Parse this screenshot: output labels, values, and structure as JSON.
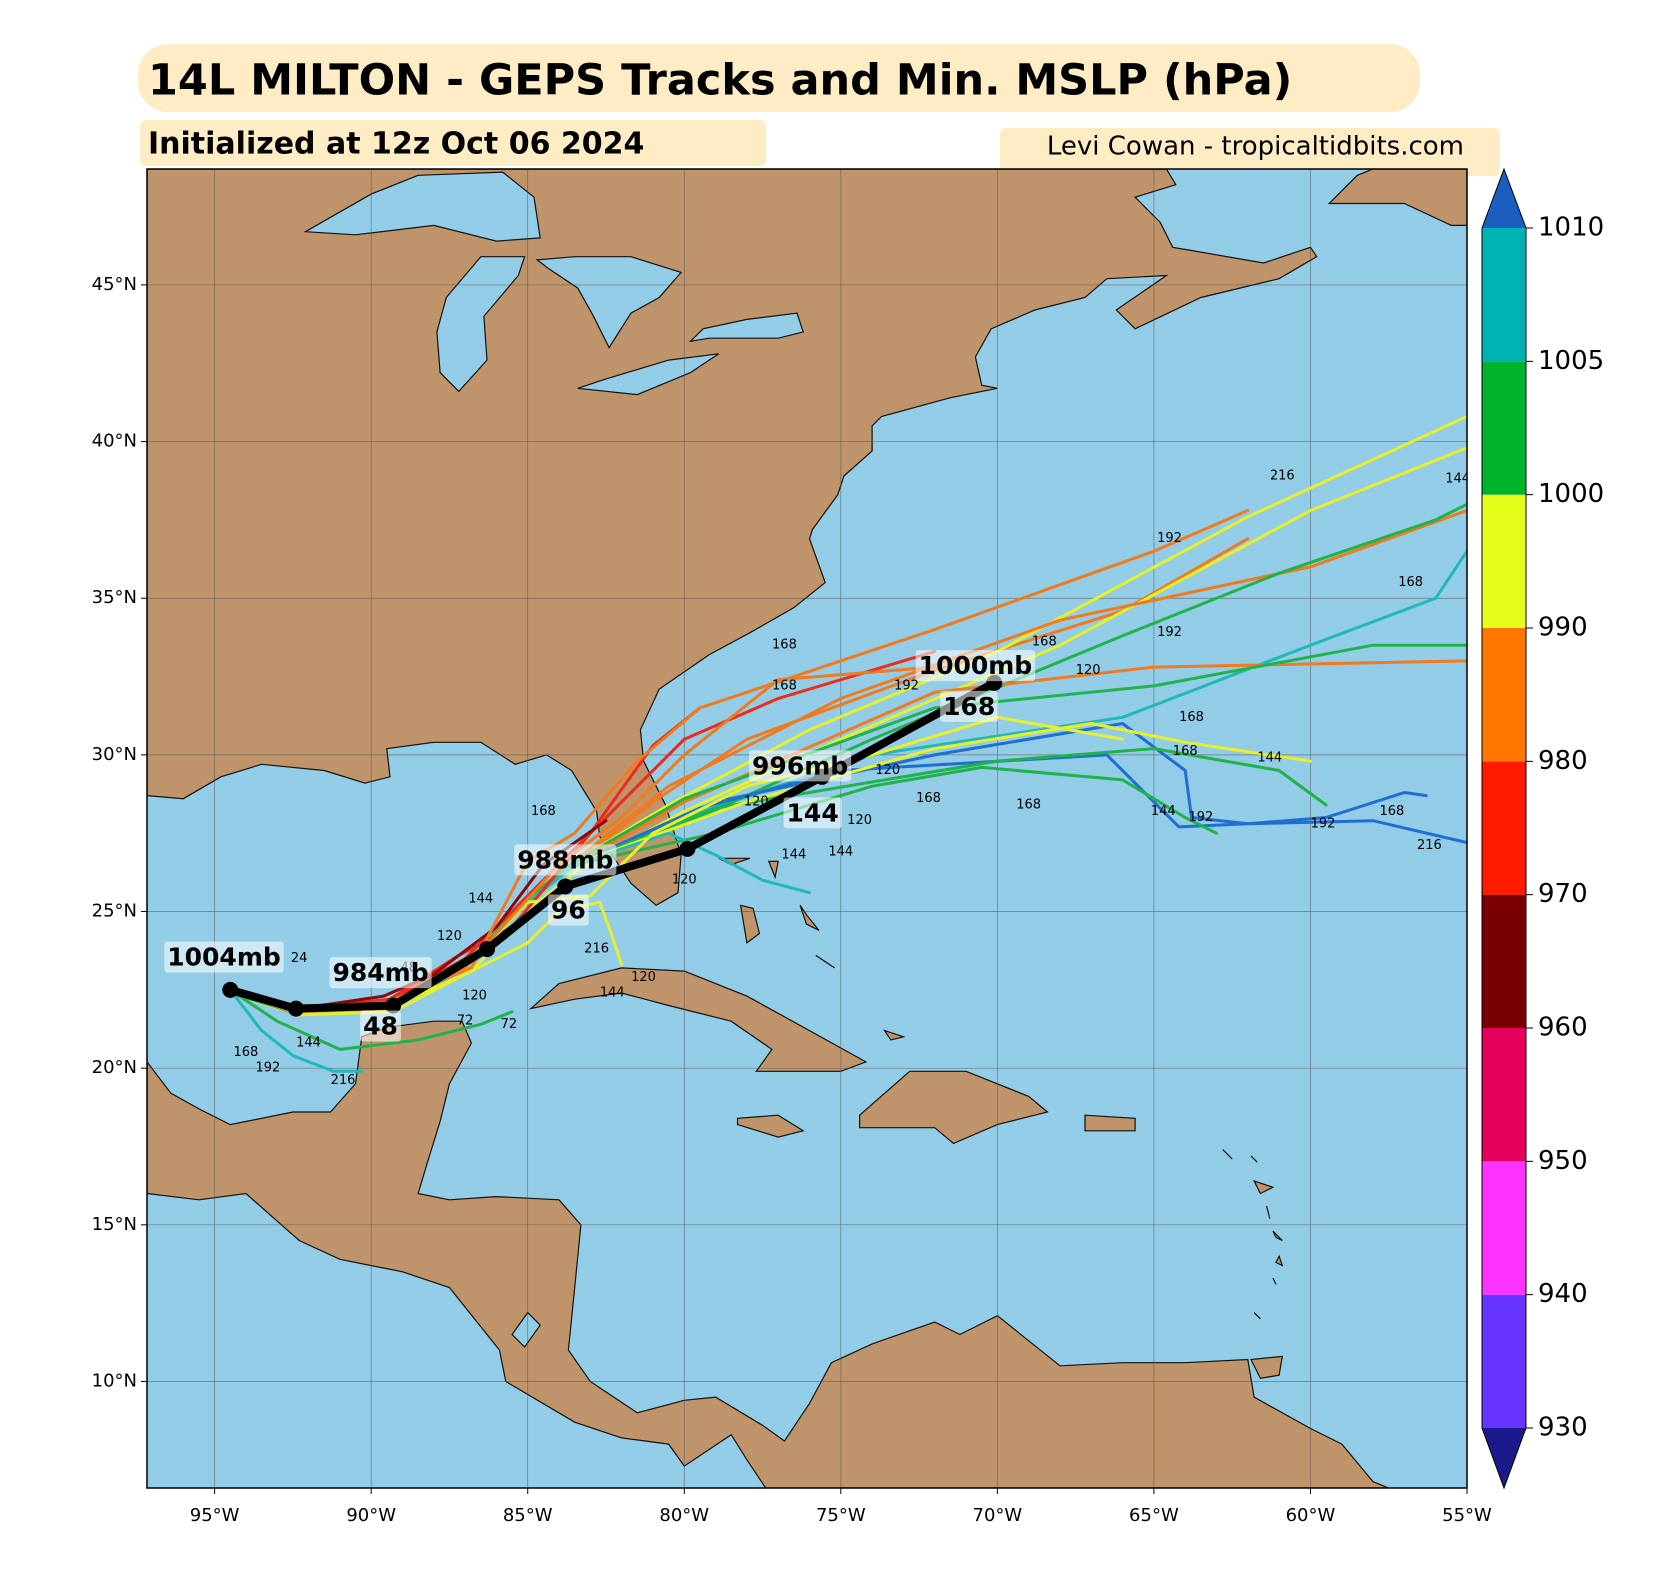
{
  "chart_data": {
    "type": "track_map",
    "title": "14L MILTON - GEPS Tracks and Min. MSLP (hPa)",
    "subtitle": "Initialized at 12z Oct 06 2024",
    "credit": "Levi Cowan - tropicaltidbits.com",
    "xlim": [
      -97.16,
      -55
    ],
    "ylim": [
      6.6,
      48.7
    ],
    "xticks": [
      {
        "value": -95,
        "label": "95°W"
      },
      {
        "value": -90,
        "label": "90°W"
      },
      {
        "value": -85,
        "label": "85°W"
      },
      {
        "value": -80,
        "label": "80°W"
      },
      {
        "value": -75,
        "label": "75°W"
      },
      {
        "value": -70,
        "label": "70°W"
      },
      {
        "value": -65,
        "label": "65°W"
      },
      {
        "value": -60,
        "label": "60°W"
      },
      {
        "value": -55,
        "label": "55°W"
      }
    ],
    "yticks": [
      {
        "value": 10,
        "label": "10°N"
      },
      {
        "value": 15,
        "label": "15°N"
      },
      {
        "value": 20,
        "label": "20°N"
      },
      {
        "value": 25,
        "label": "25°N"
      },
      {
        "value": 30,
        "label": "30°N"
      },
      {
        "value": 35,
        "label": "35°N"
      },
      {
        "value": 40,
        "label": "40°N"
      },
      {
        "value": 45,
        "label": "45°N"
      }
    ],
    "grid": true,
    "ensemble_tracks": [
      {
        "color": "#f07a1e",
        "lon": [
          -94.5,
          -92.5,
          -89.5,
          -87,
          -85,
          -83.5,
          -81,
          -78,
          -72,
          -66,
          -62
        ],
        "lat": [
          22.5,
          21.8,
          21.9,
          23.2,
          25.3,
          26.5,
          28.5,
          30.5,
          32.7,
          34.6,
          36.9
        ]
      },
      {
        "color": "#e6f02a",
        "lon": [
          -94.5,
          -92.5,
          -89.5,
          -87,
          -85,
          -83.5,
          -80.5,
          -76,
          -70,
          -62,
          -55
        ],
        "lat": [
          22.5,
          21.9,
          22.0,
          23.3,
          25.4,
          26.6,
          28.4,
          30.8,
          33.3,
          37.6,
          40.8
        ]
      },
      {
        "color": "#e6f02a",
        "lon": [
          -94.5,
          -92.3,
          -89.3,
          -86.8,
          -84.8,
          -83.3,
          -80,
          -75,
          -68,
          -60,
          -55
        ],
        "lat": [
          22.4,
          21.7,
          21.8,
          23.1,
          25.2,
          26.4,
          28.2,
          30.5,
          33.5,
          37.8,
          39.8
        ]
      },
      {
        "color": "#f07a1e",
        "lon": [
          -94.5,
          -92.4,
          -89.4,
          -86.9,
          -84.9,
          -83.4,
          -80.5,
          -75,
          -68,
          -60,
          -55
        ],
        "lat": [
          22.5,
          21.9,
          22.1,
          23.4,
          25.5,
          26.7,
          29,
          31.8,
          34.3,
          36,
          37.8
        ]
      },
      {
        "color": "#22b8b8",
        "lon": [
          -94.5,
          -92.6,
          -89.6,
          -87.1,
          -85.1,
          -83.6,
          -80,
          -74,
          -66,
          -60,
          -56,
          -55
        ],
        "lat": [
          22.5,
          21.8,
          21.9,
          23.1,
          25.2,
          26.4,
          28,
          30,
          31.2,
          33.5,
          35,
          36.5
        ]
      },
      {
        "color": "#1fb34a",
        "lon": [
          -94.5,
          -92.5,
          -89.5,
          -87,
          -85,
          -83.5,
          -80,
          -74,
          -66,
          -61,
          -56,
          -55
        ],
        "lat": [
          22.4,
          21.8,
          21.9,
          23.2,
          25.3,
          26.5,
          27.8,
          30.5,
          33.8,
          35.8,
          37.5,
          38
        ]
      },
      {
        "color": "#f07a1e",
        "lon": [
          -94.5,
          -92.5,
          -89.5,
          -87,
          -85,
          -83.5,
          -80,
          -72,
          -65,
          -55
        ],
        "lat": [
          22.5,
          21.8,
          21.9,
          23.2,
          25.3,
          26.5,
          28.5,
          32,
          32.8,
          33
        ]
      },
      {
        "color": "#1fb34a",
        "lon": [
          -94.5,
          -92.5,
          -89.5,
          -87,
          -85,
          -83.5,
          -80,
          -72,
          -65,
          -58,
          -55
        ],
        "lat": [
          22.5,
          21.8,
          22.0,
          23.3,
          25.4,
          26.6,
          28.6,
          31.5,
          32.2,
          33.5,
          33.5
        ]
      },
      {
        "color": "#1f6fd0",
        "lon": [
          -94.5,
          -92.5,
          -89.5,
          -87,
          -85,
          -83.5,
          -79,
          -72,
          -66,
          -64,
          -63.8,
          -62,
          -59.5,
          -57,
          -56.3
        ],
        "lat": [
          22.5,
          21.8,
          21.9,
          23.2,
          25.3,
          26.5,
          28.5,
          30,
          31,
          29.5,
          28,
          27.8,
          28,
          28.8,
          28.7
        ]
      },
      {
        "color": "#1f6fd0",
        "lon": [
          -94.5,
          -92.5,
          -89.5,
          -87,
          -85,
          -83.5,
          -79.5,
          -75,
          -66.5,
          -65,
          -64.2,
          -62,
          -58,
          -55
        ],
        "lat": [
          22.5,
          21.8,
          21.9,
          23.2,
          25.3,
          26.5,
          28.3,
          29.5,
          30,
          28.5,
          27.7,
          27.8,
          27.9,
          27.2
        ]
      },
      {
        "color": "#1fb34a",
        "lon": [
          -94.5,
          -92.5,
          -89.5,
          -87,
          -85,
          -83.5,
          -79,
          -70,
          -65,
          -61,
          -59.5
        ],
        "lat": [
          22.5,
          21.8,
          21.9,
          23.2,
          25.3,
          26.5,
          28.3,
          29.8,
          30.2,
          29.5,
          28.4
        ]
      },
      {
        "color": "#1fb34a",
        "lon": [
          -94.5,
          -92.5,
          -89.5,
          -87,
          -85,
          -83.5,
          -79,
          -74,
          -70.5,
          -66,
          -64,
          -63
        ],
        "lat": [
          22.5,
          21.8,
          21.9,
          23.2,
          25.3,
          26.5,
          27.5,
          29,
          29.6,
          29.2,
          28,
          27.5
        ]
      },
      {
        "color": "#e6f02a",
        "lon": [
          -94.5,
          -92.5,
          -89.5,
          -87,
          -85,
          -83.5,
          -78,
          -72,
          -67,
          -64,
          -60
        ],
        "lat": [
          22.5,
          21.8,
          21.9,
          23.2,
          25.3,
          26.5,
          28.5,
          30.2,
          31,
          30.4,
          29.8
        ]
      },
      {
        "color": "#22b8b8",
        "lon": [
          -94.5,
          -92.5,
          -89.5,
          -87,
          -85,
          -83.5,
          -80.5,
          -79,
          -77.5,
          -76
        ],
        "lat": [
          22.5,
          21.8,
          21.9,
          23.2,
          25.3,
          26.5,
          27.5,
          26.8,
          26,
          25.6
        ]
      },
      {
        "color": "#ee2a1a",
        "lon": [
          -94.5,
          -92.5,
          -89.5,
          -87,
          -84,
          -82,
          -80,
          -77,
          -72
        ],
        "lat": [
          22.5,
          21.9,
          22.1,
          23.5,
          26.5,
          28.5,
          30.5,
          31.8,
          33.3
        ]
      },
      {
        "color": "#ee2a1a",
        "lon": [
          -94.5,
          -92.4,
          -89.4,
          -87.2,
          -85.5,
          -83,
          -81,
          -79.5
        ],
        "lat": [
          22.5,
          21.9,
          22.2,
          23.6,
          24.5,
          27.5,
          30.3,
          31.5
        ]
      },
      {
        "color": "#8a0a0a",
        "lon": [
          -94.5,
          -92.3,
          -89.6,
          -88,
          -86,
          -84.5,
          -82.5
        ],
        "lat": [
          22.5,
          21.9,
          22.3,
          23,
          24.5,
          26.5,
          27.9
        ]
      },
      {
        "color": "#f07a1e",
        "lon": [
          -94.5,
          -92.5,
          -89.5,
          -86.8,
          -85,
          -83.5,
          -81.5,
          -79.5,
          -72,
          -65,
          -62
        ],
        "lat": [
          22.5,
          21.9,
          22.1,
          23.2,
          26.6,
          27.5,
          29.8,
          31.5,
          34,
          36.5,
          37.8
        ]
      },
      {
        "color": "#22b8b8",
        "lon": [
          -94.5,
          -93.5,
          -92.5,
          -91.2,
          -90.3
        ],
        "lat": [
          22.5,
          21.2,
          20.4,
          19.9,
          19.9
        ]
      },
      {
        "color": "#1fb34a",
        "lon": [
          -94.5,
          -93,
          -91,
          -88.5,
          -86.5,
          -85.5
        ],
        "lat": [
          22.5,
          21.5,
          20.6,
          20.9,
          21.4,
          21.8
        ]
      },
      {
        "color": "#e6f02a",
        "lon": [
          -94.5,
          -92.5,
          -89.5,
          -87,
          -85,
          -84,
          -82.7,
          -82.3,
          -82
        ],
        "lat": [
          22.5,
          21.8,
          21.9,
          23,
          24,
          25,
          25.3,
          24.2,
          23.3
        ]
      },
      {
        "color": "#e6f02a",
        "lon": [
          -94.5,
          -92.5,
          -89.5,
          -87,
          -85,
          -83,
          -81,
          -78,
          -74,
          -70,
          -66
        ],
        "lat": [
          22.5,
          21.8,
          21.9,
          23.2,
          25.3,
          25.5,
          27.5,
          29,
          30,
          31.2,
          30.5
        ]
      },
      {
        "color": "#f07a1e",
        "lon": [
          -94.5,
          -92.5,
          -89.5,
          -87,
          -84,
          -82,
          -80,
          -77,
          -72
        ],
        "lat": [
          22.5,
          21.8,
          21.9,
          23.2,
          26.5,
          28,
          30,
          32.4,
          32.8
        ]
      }
    ],
    "hour_labels": [
      {
        "value": 168,
        "lon": -76.8,
        "lat": 33.5
      },
      {
        "value": 168,
        "lon": -76.8,
        "lat": 32.2
      },
      {
        "value": 192,
        "lon": -72.9,
        "lat": 32.2
      },
      {
        "value": 192,
        "lon": -64.5,
        "lat": 36.9
      },
      {
        "value": 216,
        "lon": -60.9,
        "lat": 38.9
      },
      {
        "value": 144,
        "lon": -55.3,
        "lat": 38.8
      },
      {
        "value": 168,
        "lon": -56.8,
        "lat": 35.5
      },
      {
        "value": 192,
        "lon": -64.5,
        "lat": 33.9
      },
      {
        "value": 168,
        "lon": -68.5,
        "lat": 33.6
      },
      {
        "value": 120,
        "lon": -67.1,
        "lat": 32.7
      },
      {
        "value": 168,
        "lon": -63.8,
        "lat": 31.2
      },
      {
        "value": 168,
        "lon": -64,
        "lat": 30.1
      },
      {
        "value": 144,
        "lon": -61.3,
        "lat": 29.9
      },
      {
        "value": 168,
        "lon": -69,
        "lat": 28.4
      },
      {
        "value": 144,
        "lon": -64.7,
        "lat": 28.2
      },
      {
        "value": 192,
        "lon": -63.5,
        "lat": 28
      },
      {
        "value": 192,
        "lon": -59.6,
        "lat": 27.8
      },
      {
        "value": 168,
        "lon": -57.4,
        "lat": 28.2
      },
      {
        "value": 216,
        "lon": -56.2,
        "lat": 27.1
      },
      {
        "value": 120,
        "lon": -73.5,
        "lat": 29.5
      },
      {
        "value": 120,
        "lon": -74.4,
        "lat": 27.9
      },
      {
        "value": 144,
        "lon": -76.5,
        "lat": 26.8
      },
      {
        "value": 144,
        "lon": -75,
        "lat": 26.9
      },
      {
        "value": 168,
        "lon": -72.2,
        "lat": 28.6
      },
      {
        "value": 120,
        "lon": -80,
        "lat": 26
      },
      {
        "value": 120,
        "lon": -77.7,
        "lat": 28.5
      },
      {
        "value": 168,
        "lon": -84.5,
        "lat": 28.2
      },
      {
        "value": 144,
        "lon": -86.5,
        "lat": 25.4
      },
      {
        "value": 120,
        "lon": -87.5,
        "lat": 24.2
      },
      {
        "value": 48,
        "lon": -88.8,
        "lat": 23.2
      },
      {
        "value": 24,
        "lon": -92.3,
        "lat": 23.5
      },
      {
        "value": 168,
        "lon": -94,
        "lat": 20.5
      },
      {
        "value": 192,
        "lon": -93.3,
        "lat": 20
      },
      {
        "value": 216,
        "lon": -90.9,
        "lat": 19.6
      },
      {
        "value": 144,
        "lon": -92,
        "lat": 20.8
      },
      {
        "value": 216,
        "lon": -82.8,
        "lat": 23.8
      },
      {
        "value": 144,
        "lon": -82.3,
        "lat": 22.4
      },
      {
        "value": 120,
        "lon": -81.3,
        "lat": 22.9
      },
      {
        "value": 72,
        "lon": -85.6,
        "lat": 21.4
      },
      {
        "value": 72,
        "lon": -87,
        "lat": 21.5
      },
      {
        "value": 120,
        "lon": -86.7,
        "lat": 22.3
      }
    ],
    "mean_track": {
      "color": "#000000",
      "lon": [
        -94.5,
        -92.4,
        -89.3,
        -86.3,
        -83.8,
        -79.9,
        -75.6,
        -70.1
      ],
      "lat": [
        22.5,
        21.9,
        22.0,
        23.8,
        25.8,
        27.0,
        29.3,
        32.3
      ]
    },
    "mean_labels": [
      {
        "label": "1004mb",
        "lon": -94.7,
        "lat": 23.5
      },
      {
        "label": "984mb",
        "lon": -89.7,
        "lat": 23.0
      },
      {
        "label": 48,
        "lon": -89.7,
        "lat": 21.3
      },
      {
        "label": "988mb",
        "lon": -83.8,
        "lat": 26.6
      },
      {
        "label": 96,
        "lon": -83.7,
        "lat": 25.0
      },
      {
        "label": "996mb",
        "lon": -76.3,
        "lat": 29.6
      },
      {
        "label": 144,
        "lon": -75.9,
        "lat": 28.1
      },
      {
        "label": "1000mb",
        "lon": -70.7,
        "lat": 32.8
      },
      {
        "label": 168,
        "lon": -70.9,
        "lat": 31.5
      }
    ],
    "colorbar": {
      "levels": [
        930,
        940,
        950,
        960,
        970,
        980,
        990,
        1000,
        1005,
        1010
      ],
      "colors": [
        "#6633ff",
        "#ff33ff",
        "#e6005c",
        "#780000",
        "#ff1a00",
        "#ff7700",
        "#e6ff1a",
        "#00b32d",
        "#00b3b3"
      ],
      "extend_min_color": "#1a1a8c",
      "extend_max_color": "#1a5fbf"
    }
  }
}
